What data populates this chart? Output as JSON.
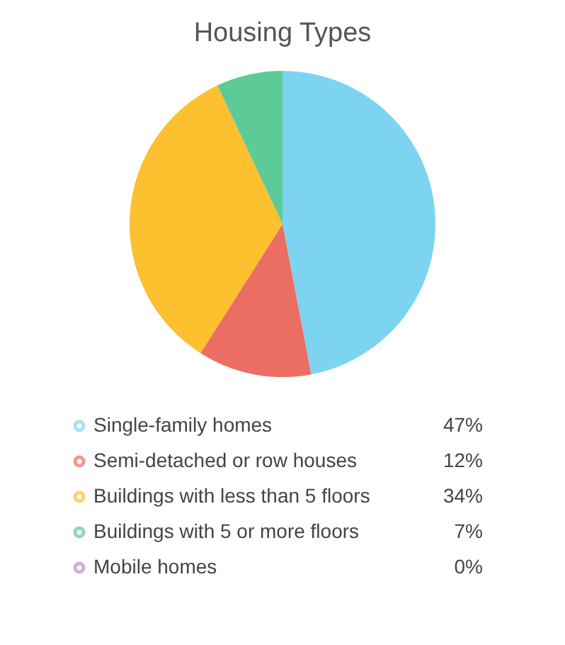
{
  "chart_data": {
    "type": "pie",
    "title": "Housing Types",
    "categories": [
      "Single-family homes",
      "Semi-detached or row houses",
      "Buildings with less than 5 floors",
      "Buildings with 5 or more floors",
      "Mobile homes"
    ],
    "values": [
      47,
      12,
      34,
      7,
      0
    ],
    "colors": [
      "#7dd4f0",
      "#ec6d62",
      "#fdc02f",
      "#5ccb98",
      "#b592c9"
    ],
    "value_labels": [
      "47%",
      "12%",
      "34%",
      "7%",
      "0%"
    ],
    "legend": "bottom"
  }
}
